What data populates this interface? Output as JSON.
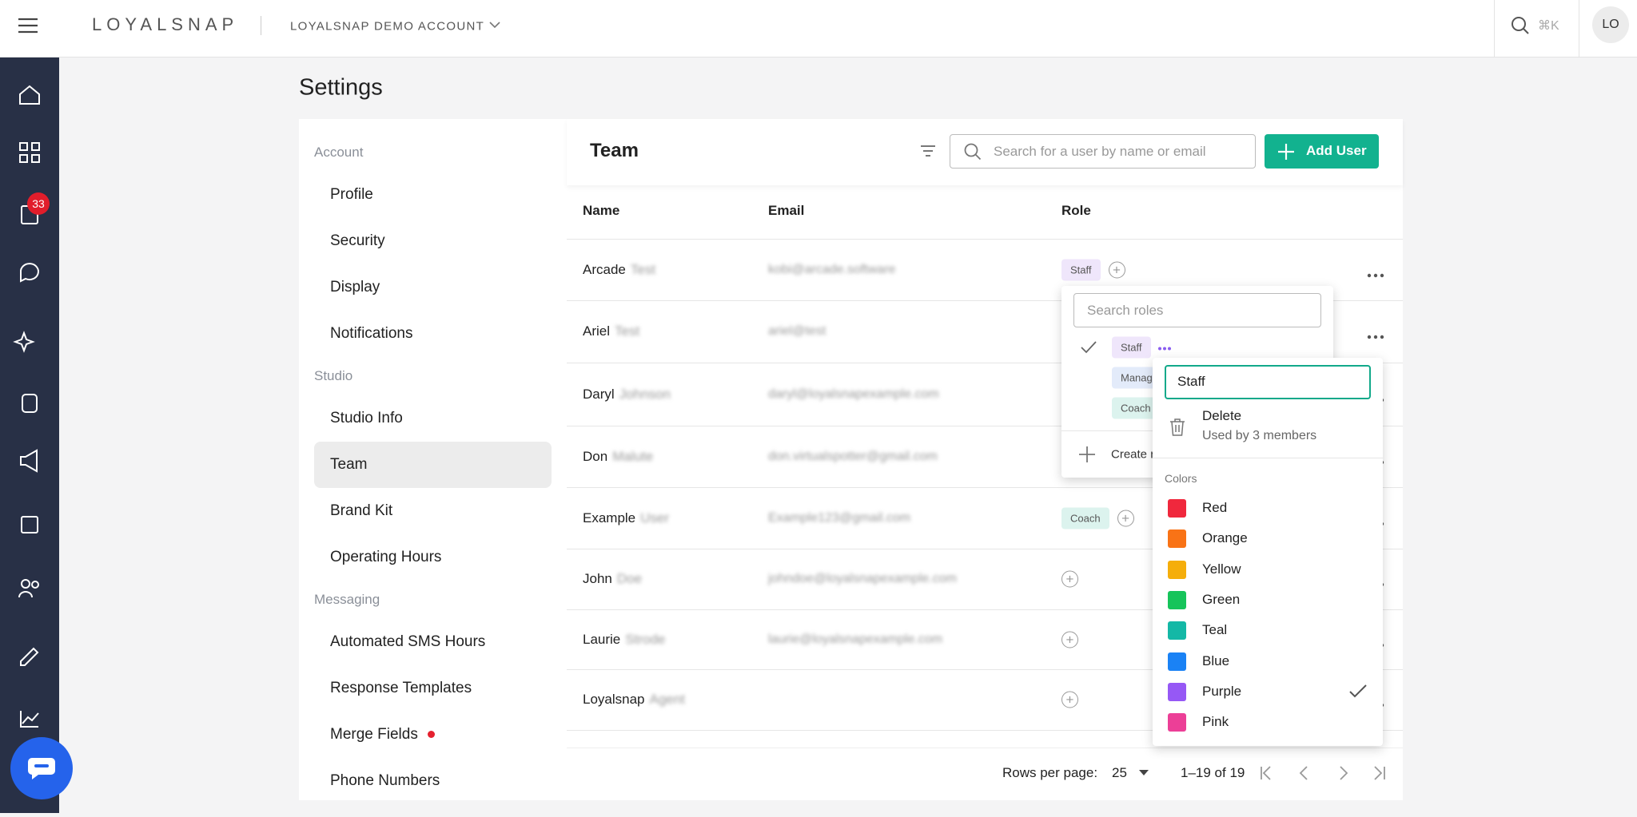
{
  "header": {
    "brand": "LOYALSNAP",
    "account": "LOYALSNAP DEMO ACCOUNT",
    "shortcut": "⌘K",
    "avatar": "LO"
  },
  "sidebar": {
    "badge": "33"
  },
  "page": {
    "title": "Settings"
  },
  "nav": {
    "sections": [
      {
        "title": "Account",
        "items": [
          {
            "label": "Profile"
          },
          {
            "label": "Security"
          },
          {
            "label": "Display"
          },
          {
            "label": "Notifications"
          }
        ]
      },
      {
        "title": "Studio",
        "items": [
          {
            "label": "Studio Info"
          },
          {
            "label": "Team",
            "active": true
          },
          {
            "label": "Brand Kit"
          },
          {
            "label": "Operating Hours"
          }
        ]
      },
      {
        "title": "Messaging",
        "items": [
          {
            "label": "Automated SMS Hours"
          },
          {
            "label": "Response Templates"
          },
          {
            "label": "Merge Fields",
            "dot": true
          },
          {
            "label": "Phone Numbers"
          }
        ]
      }
    ]
  },
  "team": {
    "title": "Team",
    "search_placeholder": "Search for a user by name or email",
    "add_button": "Add User",
    "columns": [
      "Name",
      "Email",
      "Role"
    ],
    "rows": [
      {
        "first": "Arcade",
        "last": "Test",
        "email": "kobi@arcade.software",
        "roles": [
          {
            "label": "Staff",
            "color": "#efe6fb"
          }
        ]
      },
      {
        "first": "Ariel",
        "last": "Test",
        "email": "ariel@test",
        "roles": []
      },
      {
        "first": "Daryl",
        "last": "Johnson",
        "email": "daryl@loyalsnapexample.com",
        "roles": []
      },
      {
        "first": "Don",
        "last": "Malute",
        "email": "don.virtualspotter@gmail.com",
        "roles": []
      },
      {
        "first": "Example",
        "last": "User",
        "email": "Example123@gmail.com",
        "roles": [
          {
            "label": "Coach",
            "color": "#dcf3ee"
          }
        ]
      },
      {
        "first": "John",
        "last": "Doe",
        "email": "johndoe@loyalsnapexample.com",
        "roles": []
      },
      {
        "first": "Laurie",
        "last": "Strode",
        "email": "laurie@loyalsnapexample.com",
        "roles": []
      },
      {
        "first": "Loyalsnap",
        "last": "Agent",
        "email": "",
        "roles": []
      }
    ],
    "footer": {
      "rows_per_page_label": "Rows per page:",
      "rows_per_page": "25",
      "range": "1–19 of 19"
    }
  },
  "roles_menu": {
    "placeholder": "Search roles",
    "roles": [
      {
        "label": "Staff",
        "color": "#efe6fb",
        "checked": true
      },
      {
        "label": "Manager",
        "color": "#e3ebfa"
      },
      {
        "label": "Coach",
        "color": "#dcf3ee"
      }
    ],
    "create": "Create role"
  },
  "role_editor": {
    "name": "Staff",
    "delete": "Delete",
    "usage": "Used by 3 members",
    "colors_title": "Colors",
    "colors": [
      {
        "name": "Red",
        "swatch": "#f0283d"
      },
      {
        "name": "Orange",
        "swatch": "#f97316"
      },
      {
        "name": "Yellow",
        "swatch": "#f5ae0b"
      },
      {
        "name": "Green",
        "swatch": "#16c45a"
      },
      {
        "name": "Teal",
        "swatch": "#14b8a6"
      },
      {
        "name": "Blue",
        "swatch": "#1a82f5"
      },
      {
        "name": "Purple",
        "swatch": "#9658f5",
        "selected": true
      },
      {
        "name": "Pink",
        "swatch": "#ec3f97"
      }
    ]
  }
}
